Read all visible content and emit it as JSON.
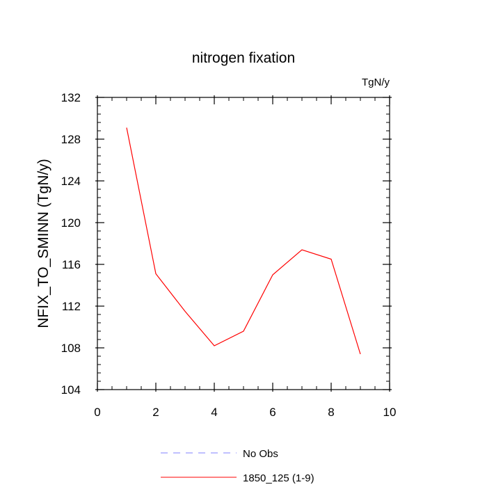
{
  "chart_data": {
    "type": "line",
    "title": "nitrogen fixation",
    "units": "TgN/y",
    "ylabel": "NFIX_TO_SMINN  (TgN/y)",
    "xlabel": "",
    "xlim": [
      0,
      10
    ],
    "ylim": [
      104,
      132
    ],
    "xticks": [
      0,
      2,
      4,
      6,
      8,
      10
    ],
    "yticks": [
      104,
      108,
      112,
      116,
      120,
      124,
      128,
      132
    ],
    "grid": false,
    "legend_position": "bottom-center",
    "series": [
      {
        "name": "1850_125 (1-9)",
        "color": "#ff0000",
        "style": "solid",
        "x": [
          1,
          2,
          3,
          4,
          5,
          6,
          7,
          8,
          9
        ],
        "y": [
          129.1,
          115.1,
          111.5,
          108.2,
          109.6,
          115.0,
          117.4,
          116.5,
          107.4
        ]
      }
    ],
    "legend": [
      {
        "label": "No Obs",
        "color": "#8080ff",
        "style": "dashed"
      },
      {
        "label": "1850_125 (1-9)",
        "color": "#ff0000",
        "style": "solid"
      }
    ]
  }
}
